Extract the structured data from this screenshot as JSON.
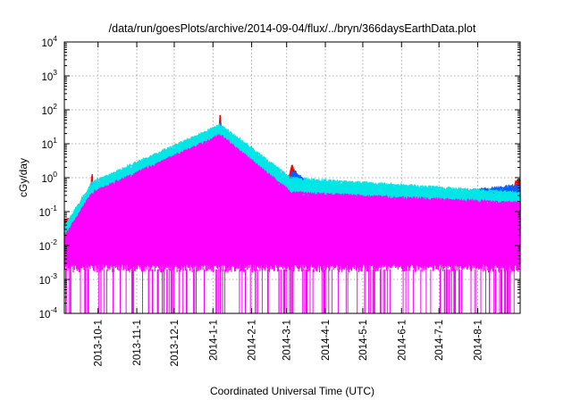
{
  "chart_data": {
    "type": "line",
    "title": "/data/run/goesPlots/archive/2014-09-04/flux/../bryn/366daysEarthData.plot",
    "xlabel": "Coordinated Universal Time (UTC)",
    "ylabel": "cGy/day",
    "y_scale": "log",
    "ylim": [
      0.0001,
      10000
    ],
    "xlim": [
      "2013-09-04",
      "2014-09-04"
    ],
    "grid": true,
    "legend": "none",
    "y_ticks": [
      {
        "value": 0.0001,
        "base": "10",
        "exp": "-4"
      },
      {
        "value": 0.001,
        "base": "10",
        "exp": "-3"
      },
      {
        "value": 0.01,
        "base": "10",
        "exp": "-2"
      },
      {
        "value": 0.1,
        "base": "10",
        "exp": "-1"
      },
      {
        "value": 1,
        "base": "10",
        "exp": "0"
      },
      {
        "value": 10,
        "base": "10",
        "exp": "1"
      },
      {
        "value": 100,
        "base": "10",
        "exp": "2"
      },
      {
        "value": 1000,
        "base": "10",
        "exp": "3"
      },
      {
        "value": 10000,
        "base": "10",
        "exp": "4"
      }
    ],
    "x_ticks": [
      {
        "label": "2013-10-1",
        "date": "2013-10-01"
      },
      {
        "label": "2013-11-1",
        "date": "2013-11-01"
      },
      {
        "label": "2013-12-1",
        "date": "2013-12-01"
      },
      {
        "label": "2014-1-1",
        "date": "2014-01-01"
      },
      {
        "label": "2014-2-1",
        "date": "2014-02-01"
      },
      {
        "label": "2014-3-1",
        "date": "2014-03-01"
      },
      {
        "label": "2014-4-1",
        "date": "2014-04-01"
      },
      {
        "label": "2014-5-1",
        "date": "2014-05-01"
      },
      {
        "label": "2014-6-1",
        "date": "2014-06-01"
      },
      {
        "label": "2014-7-1",
        "date": "2014-07-01"
      },
      {
        "label": "2014-8-1",
        "date": "2014-08-01"
      }
    ],
    "series": [
      {
        "color": "#ff0000",
        "baseline": 0.05,
        "x": [
          "2013-09-04",
          "2013-09-25",
          "2013-09-26",
          "2013-09-28",
          "2013-10-20",
          "2013-10-28",
          "2013-11-02",
          "2013-11-07",
          "2013-11-20",
          "2013-12-20",
          "2014-01-02",
          "2014-01-07",
          "2014-01-08",
          "2014-01-12",
          "2014-01-28",
          "2014-02-04",
          "2014-02-20",
          "2014-02-25",
          "2014-03-05",
          "2014-03-30",
          "2014-04-18",
          "2014-05-10",
          "2014-06-10",
          "2014-07-10",
          "2014-08-20",
          "2014-09-01",
          "2014-09-04"
        ],
        "y": [
          0.05,
          0.05,
          1.8,
          0.05,
          0.05,
          0.4,
          0.05,
          0.3,
          0.05,
          0.05,
          0.25,
          80,
          2,
          0.05,
          0.05,
          0.05,
          1.5,
          0.05,
          2.0,
          0.05,
          0.2,
          0.05,
          0.05,
          0.05,
          0.05,
          0.7,
          0.7
        ]
      },
      {
        "color": "#0060ff",
        "baseline": 0.035,
        "x": [
          "2013-09-04",
          "2013-09-25",
          "2013-09-26",
          "2013-09-28",
          "2013-10-28",
          "2013-11-02",
          "2013-11-07",
          "2014-01-02",
          "2014-01-07",
          "2014-01-08",
          "2014-01-12",
          "2014-02-20",
          "2014-02-25",
          "2014-03-05",
          "2014-04-18",
          "2014-09-01",
          "2014-09-04"
        ],
        "y": [
          0.035,
          0.035,
          1.0,
          0.035,
          0.25,
          0.035,
          0.2,
          0.15,
          50,
          1.2,
          0.035,
          0.9,
          0.035,
          1.3,
          0.12,
          0.5,
          0.5
        ]
      },
      {
        "color": "#00c000",
        "baseline": 0.022,
        "x": [
          "2013-09-04",
          "2013-09-26",
          "2014-01-07",
          "2014-03-05",
          "2014-09-04"
        ],
        "y": [
          0.022,
          0.4,
          20,
          0.5,
          0.2
        ]
      },
      {
        "color": "#00e5e5",
        "baseline": 0.03,
        "x": [
          "2013-09-04",
          "2013-09-26",
          "2014-01-07",
          "2014-03-05",
          "2014-09-04"
        ],
        "y": [
          0.03,
          0.6,
          30,
          0.8,
          0.3
        ]
      },
      {
        "color": "#ff00ff",
        "baseline": 0.015,
        "min": 0.002,
        "x": [
          "2013-09-04",
          "2013-09-26",
          "2014-01-07",
          "2014-03-05",
          "2014-09-04"
        ],
        "y": [
          0.015,
          0.3,
          15,
          0.3,
          0.15
        ]
      }
    ]
  }
}
